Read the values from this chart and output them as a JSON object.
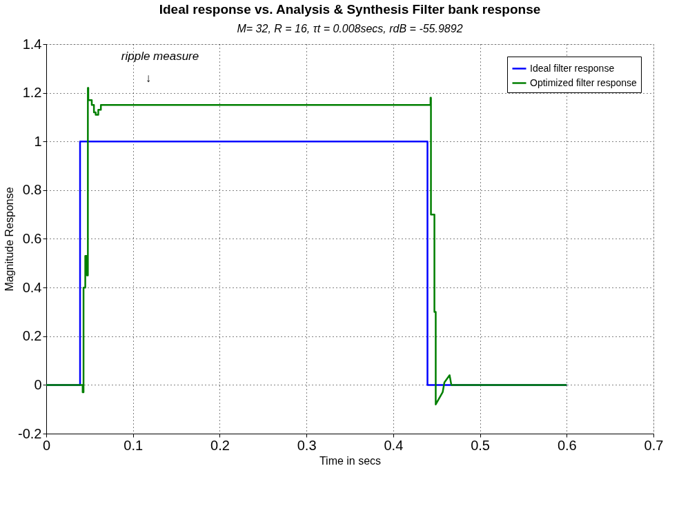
{
  "chart_data": {
    "type": "line",
    "title": "Ideal response vs. Analysis & Synthesis Filter bank response",
    "subtitle": "M= 32, R = 16, τt = 0.008secs, rdB = -55.9892",
    "xlabel": "Time in secs",
    "ylabel": "Magnitude Response",
    "series": [
      {
        "name": "Ideal filter response",
        "color": "#0000ff",
        "x": [
          0,
          0.039,
          0.039,
          0.4395,
          0.4395,
          0.6
        ],
        "values": [
          0,
          0,
          1,
          1,
          0,
          0
        ]
      },
      {
        "name": "Optimized filter response",
        "color": "#007f00",
        "x": [
          0,
          0.042,
          0.042,
          0.043,
          0.043,
          0.045,
          0.045,
          0.047,
          0.047,
          0.048,
          0.048,
          0.0485,
          0.0485,
          0.0525,
          0.0525,
          0.055,
          0.055,
          0.057,
          0.057,
          0.06,
          0.06,
          0.063,
          0.063,
          0.443,
          0.443,
          0.4435,
          0.4435,
          0.4475,
          0.4475,
          0.449,
          0.449,
          0.457,
          0.457,
          0.459,
          0.459,
          0.465,
          0.465,
          0.467,
          0.467,
          0.6
        ],
        "values": [
          0,
          0,
          -0.03,
          -0.03,
          0.4,
          0.4,
          0.53,
          0.53,
          0.45,
          0.45,
          1.22,
          1.22,
          1.17,
          1.17,
          1.15,
          1.15,
          1.12,
          1.12,
          1.11,
          1.11,
          1.13,
          1.13,
          1.15,
          1.15,
          1.18,
          1.18,
          0.7,
          0.7,
          0.3,
          0.3,
          -0.08,
          -0.03,
          -0.03,
          0.01,
          0.01,
          0.04,
          0.04,
          0.0,
          0.0,
          0
        ]
      }
    ],
    "annotations": [
      "ripple measure",
      "↓"
    ],
    "xlim": [
      0,
      0.7
    ],
    "xticks": [
      0,
      0.1,
      0.2,
      0.3,
      0.4,
      0.5,
      0.6,
      0.7
    ],
    "ylim": [
      -0.2,
      1.4
    ],
    "yticks": [
      -0.2,
      0,
      0.2,
      0.4,
      0.6,
      0.8,
      1,
      1.2,
      1.4
    ],
    "grid": true,
    "legend": "top right",
    "line_style": "solid"
  }
}
